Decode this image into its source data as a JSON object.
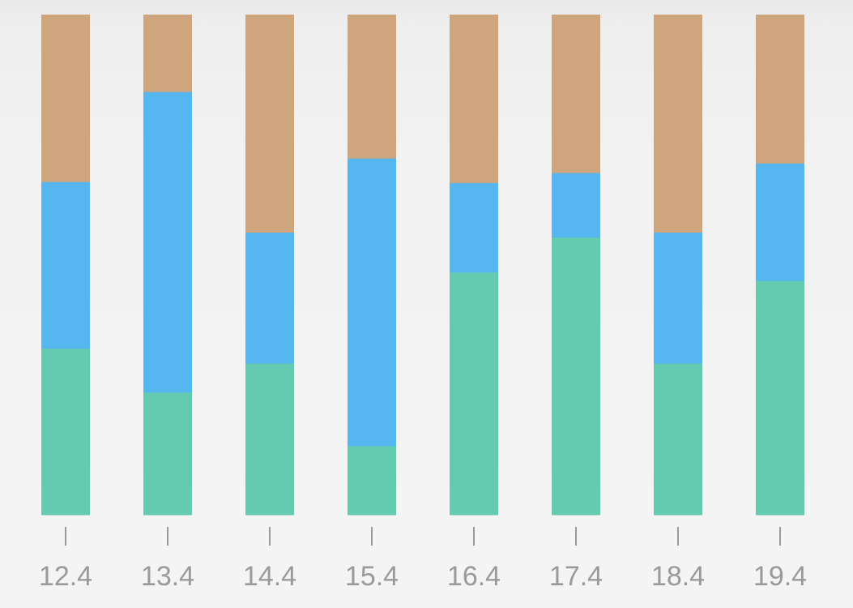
{
  "chart_data": {
    "type": "bar",
    "stacked": true,
    "normalized": true,
    "categories": [
      "12.4",
      "13.4",
      "14.4",
      "15.4",
      "16.4",
      "17.4",
      "18.4",
      "19.4"
    ],
    "series": [
      {
        "values": [
          33.3,
          24.5,
          30.3,
          13.8,
          48.5,
          55.5,
          30.3,
          46.8
        ],
        "color": "#64cbb0"
      },
      {
        "values": [
          33.3,
          60.1,
          26.2,
          57.5,
          17.9,
          12.9,
          26.2,
          23.5
        ],
        "color": "#56b6f0"
      },
      {
        "values": [
          33.4,
          15.4,
          43.5,
          28.7,
          33.6,
          31.6,
          43.5,
          29.7
        ],
        "color": "#cea57d"
      }
    ],
    "ylim": [
      0,
      100
    ],
    "grid": false,
    "legend": "none",
    "xlabel": "",
    "ylabel": ""
  },
  "colors": {
    "tick_mark": "#9a9a9a",
    "tick_label": "#9a9a9a"
  }
}
